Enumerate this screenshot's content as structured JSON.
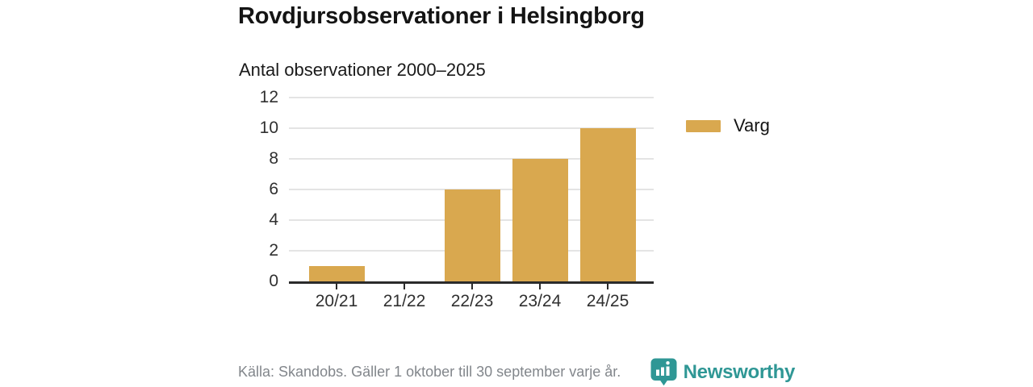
{
  "header": {
    "title": "Rovdjursobservationer i Helsingborg",
    "subtitle": "Antal observationer 2000–2025"
  },
  "chart_data": {
    "type": "bar",
    "title": "Rovdjursobservationer i Helsingborg",
    "subtitle": "Antal observationer 2000–2025",
    "categories": [
      "20/21",
      "21/22",
      "22/23",
      "23/24",
      "24/25"
    ],
    "series": [
      {
        "name": "Varg",
        "values": [
          1,
          0,
          6,
          8,
          10
        ],
        "color": "#D9A84F"
      }
    ],
    "xlabel": "",
    "ylabel": "",
    "ylim": [
      0,
      12
    ],
    "yticks": [
      0,
      2,
      4,
      6,
      8,
      10,
      12
    ],
    "grid": true,
    "legend_position": "right"
  },
  "legend": {
    "items": [
      {
        "label": "Varg",
        "color": "#D9A84F"
      }
    ]
  },
  "footer": {
    "source": "Källa: Skandobs. Gäller 1 oktober till 30 september varje år.",
    "brand": "Newsworthy"
  },
  "colors": {
    "bar": "#D9A84F",
    "axis": "#2b2b2b",
    "grid": "#e4e4e4",
    "text": "#141414",
    "muted": "#82868b",
    "brand_teal": "#2f9795",
    "background": "#ffffff"
  }
}
